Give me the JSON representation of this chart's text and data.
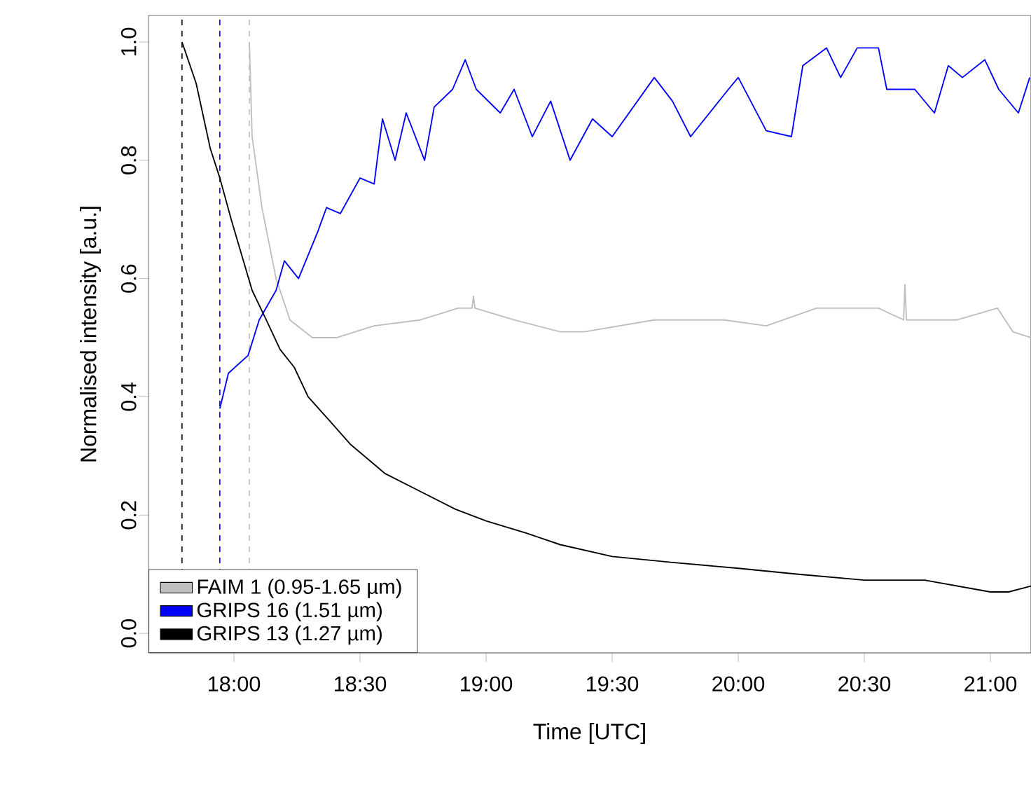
{
  "chart_data": {
    "type": "line",
    "xlabel": "Time [UTC]",
    "ylabel": "Normalised intensity [a.u.]",
    "xlim": [
      17.661,
      21.161
    ],
    "ylim": [
      -0.033,
      1.045
    ],
    "xticks": [
      {
        "value": 18,
        "label": "18:00"
      },
      {
        "value": 18.5,
        "label": "18:30"
      },
      {
        "value": 19,
        "label": "19:00"
      },
      {
        "value": 19.5,
        "label": "19:30"
      },
      {
        "value": 20,
        "label": "20:00"
      },
      {
        "value": 20.5,
        "label": "20:30"
      },
      {
        "value": 21,
        "label": "21:00"
      }
    ],
    "yticks": [
      {
        "value": 0,
        "label": "0.0"
      },
      {
        "value": 0.2,
        "label": "0.2"
      },
      {
        "value": 0.4,
        "label": "0.4"
      },
      {
        "value": 0.6,
        "label": "0.6"
      },
      {
        "value": 0.8,
        "label": "0.8"
      },
      {
        "value": 1,
        "label": "1.0"
      }
    ],
    "legend": "bottom left",
    "grid": false,
    "ref_lines": [
      {
        "axis": "x",
        "value": 17.794,
        "color": "#000000",
        "line_style": "dashed"
      },
      {
        "axis": "x",
        "value": 17.944,
        "color": "#0000ff",
        "line_style": "dashed"
      },
      {
        "axis": "x",
        "value": 18.061,
        "color": "#bebebe",
        "line_style": "dashed"
      }
    ],
    "series": [
      {
        "name": "FAIM 1 (0.95-1.65 µm)",
        "color": "#bebebe",
        "x": [
          18.061,
          18.072,
          18.111,
          18.167,
          18.222,
          18.311,
          18.406,
          18.556,
          18.739,
          18.889,
          18.944,
          18.95,
          18.956,
          19.111,
          19.294,
          19.389,
          19.667,
          19.944,
          20.111,
          20.311,
          20.556,
          20.656,
          20.661,
          20.667,
          20.867,
          21.028,
          21.089,
          21.161
        ],
        "values": [
          1.0,
          0.84,
          0.72,
          0.6,
          0.53,
          0.5,
          0.5,
          0.52,
          0.53,
          0.55,
          0.55,
          0.57,
          0.55,
          0.53,
          0.51,
          0.51,
          0.53,
          0.53,
          0.52,
          0.55,
          0.55,
          0.53,
          0.59,
          0.53,
          0.53,
          0.55,
          0.51,
          0.5
        ]
      },
      {
        "name": "GRIPS 16 (1.51 µm)",
        "color": "#0000ff",
        "x": [
          17.944,
          17.978,
          18.056,
          18.1,
          18.167,
          18.2,
          18.256,
          18.333,
          18.367,
          18.422,
          18.5,
          18.556,
          18.589,
          18.639,
          18.683,
          18.756,
          18.794,
          18.867,
          18.917,
          18.961,
          19.056,
          19.111,
          19.183,
          19.256,
          19.333,
          19.422,
          19.5,
          19.667,
          19.739,
          19.811,
          19.961,
          20.0,
          20.111,
          20.211,
          20.256,
          20.35,
          20.406,
          20.472,
          20.556,
          20.589,
          20.7,
          20.778,
          20.833,
          20.889,
          20.978,
          21.033,
          21.111,
          21.156
        ],
        "values": [
          0.38,
          0.44,
          0.47,
          0.53,
          0.58,
          0.63,
          0.6,
          0.68,
          0.72,
          0.71,
          0.77,
          0.76,
          0.87,
          0.8,
          0.88,
          0.8,
          0.89,
          0.92,
          0.97,
          0.92,
          0.88,
          0.92,
          0.84,
          0.9,
          0.8,
          0.87,
          0.84,
          0.94,
          0.9,
          0.84,
          0.92,
          0.94,
          0.85,
          0.84,
          0.96,
          0.99,
          0.94,
          0.99,
          0.99,
          0.92,
          0.92,
          0.88,
          0.96,
          0.94,
          0.97,
          0.92,
          0.88,
          0.94
        ]
      },
      {
        "name": "GRIPS 13 (1.27 µm)",
        "color": "#000000",
        "x": [
          17.794,
          17.85,
          17.906,
          17.944,
          17.989,
          18.072,
          18.128,
          18.183,
          18.239,
          18.294,
          18.378,
          18.461,
          18.6,
          18.739,
          18.878,
          19.0,
          19.156,
          19.294,
          19.5,
          19.739,
          20.0,
          20.239,
          20.5,
          20.739,
          21.0,
          21.072,
          21.161
        ],
        "values": [
          1.0,
          0.93,
          0.82,
          0.77,
          0.7,
          0.58,
          0.53,
          0.48,
          0.45,
          0.4,
          0.36,
          0.32,
          0.27,
          0.24,
          0.21,
          0.19,
          0.17,
          0.15,
          0.13,
          0.12,
          0.11,
          0.1,
          0.09,
          0.09,
          0.07,
          0.07,
          0.08
        ]
      }
    ]
  }
}
